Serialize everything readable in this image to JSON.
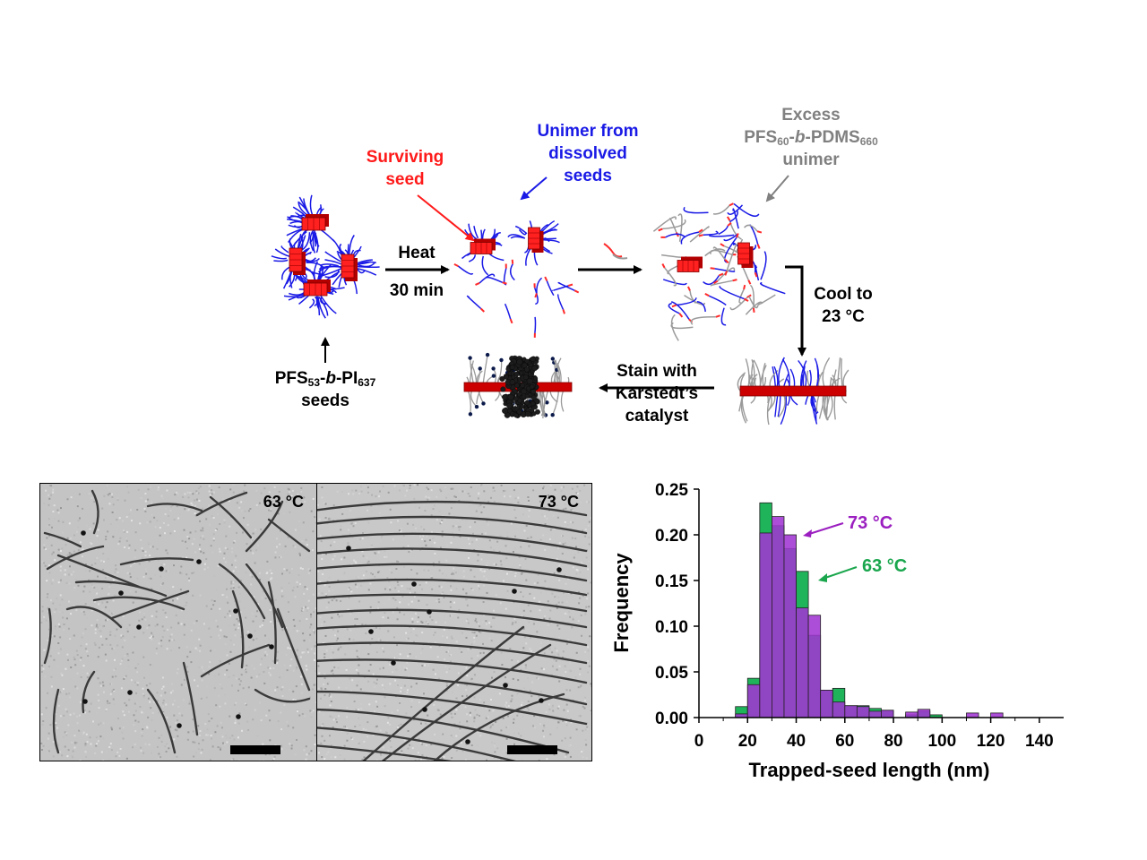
{
  "scheme": {
    "surviving_seed": [
      "Surviving",
      "seed"
    ],
    "unimer_dissolved": [
      "Unimer from",
      "dissolved",
      "seeds"
    ],
    "excess_label": {
      "line1": "Excess",
      "pfs": "PFS",
      "pfs_sub": "60",
      "b": "-b-",
      "pdms": "PDMS",
      "pdms_sub": "660",
      "line3": "unimer"
    },
    "heat": "Heat",
    "heat_time": "30 min",
    "cool": [
      "Cool to",
      "23 °C"
    ],
    "stain": [
      "Stain with",
      "Karstedt’s",
      "catalyst"
    ],
    "seeds_label": {
      "pfs": "PFS",
      "pfs_sub": "53",
      "b": "-b-",
      "pi": "PI",
      "pi_sub": "637",
      "line2": "seeds"
    }
  },
  "tem_left": {
    "label": "63 °C"
  },
  "tem_right": {
    "label": "73 °C"
  },
  "chart_data": {
    "type": "bar",
    "xlabel": "Trapped-seed length (nm)",
    "ylabel": "Frequency",
    "xlim": [
      0,
      150
    ],
    "ylim": [
      0,
      0.25
    ],
    "xticks": [
      0,
      20,
      40,
      60,
      80,
      100,
      120,
      140
    ],
    "yticks": [
      0.0,
      0.05,
      0.1,
      0.15,
      0.2,
      0.25
    ],
    "ytick_labels": [
      "0.00",
      "0.05",
      "0.10",
      "0.15",
      "0.20",
      "0.25"
    ],
    "bin_width": 5,
    "bin_starts": [
      15,
      20,
      25,
      30,
      35,
      40,
      45,
      50,
      55,
      60,
      65,
      70,
      75,
      80,
      85,
      90,
      95,
      100,
      105,
      110,
      115,
      120,
      125
    ],
    "series": [
      {
        "name": "63 °C",
        "color": "#1fb35a",
        "values": [
          0.012,
          0.043,
          0.235,
          0.21,
          0.185,
          0.16,
          0.09,
          0.03,
          0.032,
          0.013,
          0.013,
          0.01,
          0.008,
          0.0,
          0.003,
          0.007,
          0.003,
          0.0,
          0.0,
          0.0,
          0.0,
          0.0,
          0.0
        ]
      },
      {
        "name": "73 °C",
        "color": "#a035d2",
        "values": [
          0.004,
          0.036,
          0.202,
          0.22,
          0.2,
          0.12,
          0.112,
          0.03,
          0.017,
          0.013,
          0.012,
          0.007,
          0.008,
          0.0,
          0.006,
          0.009,
          0.0,
          0.0,
          0.0,
          0.005,
          0.0,
          0.005,
          0.0
        ]
      }
    ],
    "annotations": [
      {
        "text": "73 °C",
        "series": "73 °C"
      },
      {
        "text": "63 °C",
        "series": "63 °C"
      }
    ]
  }
}
